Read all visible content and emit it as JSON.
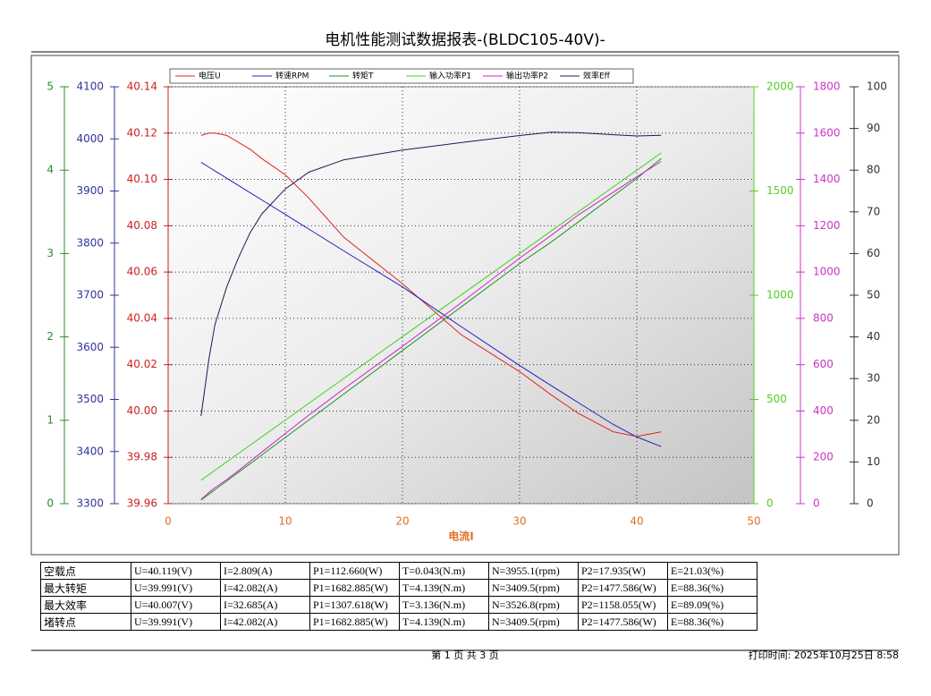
{
  "header": {
    "title": "电机性能测试数据报表-(BLDC105-40V)-"
  },
  "chart_data": {
    "type": "line",
    "xlabel": "电流I",
    "xlim": [
      0,
      50
    ],
    "xticks": [
      0,
      10,
      20,
      30,
      40,
      50
    ],
    "x": [
      2.809,
      3.5,
      4,
      5,
      6,
      7,
      8,
      10,
      12,
      15,
      20,
      25,
      30,
      32.685,
      35,
      38,
      40,
      42.082
    ],
    "y_axes": [
      {
        "color": "#2e8b2e",
        "lim": [
          0,
          5
        ],
        "ticks": [
          0,
          1,
          2,
          3,
          4,
          5
        ]
      },
      {
        "color": "#33339a",
        "lim": [
          3300,
          4100
        ],
        "ticks": [
          3300,
          3400,
          3500,
          3600,
          3700,
          3800,
          3900,
          4000,
          4100
        ]
      },
      {
        "color": "#cc2222",
        "lim": [
          39.96,
          40.14
        ],
        "grid": true,
        "ticks": [
          39.96,
          39.98,
          {
            "value": 40,
            "label": "40.00"
          },
          40.02,
          40.04,
          40.06,
          40.08,
          {
            "value": 40.1,
            "label": "40.10"
          },
          40.12,
          40.14
        ]
      },
      {
        "color": "#55cc22",
        "lim": [
          0,
          2000
        ],
        "ticks": [
          0,
          500,
          1000,
          1500,
          2000
        ]
      },
      {
        "color": "#cc33cc",
        "lim": [
          0,
          1800
        ],
        "ticks": [
          0,
          200,
          400,
          600,
          800,
          1000,
          1200,
          1400,
          1600,
          1800
        ]
      },
      {
        "color": "#333333",
        "lim": [
          0,
          100
        ],
        "ticks": [
          0,
          10,
          20,
          30,
          40,
          50,
          60,
          70,
          80,
          90,
          100
        ]
      }
    ],
    "series": [
      {
        "name": "电压U",
        "color": "#e02020",
        "axis": 2,
        "values": [
          40.119,
          40.12,
          40.12,
          40.119,
          40.116,
          40.113,
          40.109,
          40.102,
          40.092,
          40.075,
          40.055,
          40.033,
          40.017,
          40.007,
          39.999,
          39.991,
          39.989,
          39.991
        ]
      },
      {
        "name": "转速RPM",
        "color": "#2020c0",
        "axis": 1,
        "values": [
          3955.1,
          3945.5,
          3938.5,
          3924.5,
          3910.7,
          3896.8,
          3882.9,
          3855,
          3827,
          3785,
          3716,
          3640,
          3565,
          3526.8,
          3494,
          3452,
          3428,
          3409.5
        ]
      },
      {
        "name": "转矩T",
        "color": "#209020",
        "axis": 0,
        "values": [
          0.043,
          0.115,
          0.167,
          0.272,
          0.376,
          0.48,
          0.585,
          0.794,
          1.002,
          1.315,
          1.837,
          2.358,
          2.88,
          3.136,
          3.378,
          3.691,
          3.9,
          4.139
        ]
      },
      {
        "name": "输入功率P1",
        "color": "#40d020",
        "axis": 3,
        "values": [
          112.66,
          140.4,
          160.5,
          200.6,
          240.7,
          280.8,
          320.9,
          401,
          481.1,
          601.1,
          801.1,
          1000.8,
          1200.5,
          1307.618,
          1400,
          1519.7,
          1599.6,
          1682.885
        ]
      },
      {
        "name": "输出功率P2",
        "color": "#d020d0",
        "axis": 4,
        "values": [
          17.935,
          49,
          69,
          104,
          142,
          183,
          223,
          303,
          382,
          496,
          679,
          867,
          1060,
          1158.055,
          1246,
          1345,
          1411,
          1477.586
        ]
      },
      {
        "name": "效率Eff",
        "color": "#301050",
        "axis": 5,
        "values": [
          21.03,
          35,
          43,
          52,
          59,
          65,
          69.5,
          75.5,
          79.5,
          82.5,
          84.8,
          86.6,
          88.3,
          89.09,
          89,
          88.5,
          88.2,
          88.36
        ]
      }
    ]
  },
  "table": {
    "rows": [
      [
        "空载点",
        "U=40.119(V)",
        "I=2.809(A)",
        "P1=112.660(W)",
        "T=0.043(N.m)",
        "N=3955.1(rpm)",
        "P2=17.935(W)",
        "E=21.03(%)"
      ],
      [
        "最大转矩",
        "U=39.991(V)",
        "I=42.082(A)",
        "P1=1682.885(W)",
        "T=4.139(N.m)",
        "N=3409.5(rpm)",
        "P2=1477.586(W)",
        "E=88.36(%)"
      ],
      [
        "最大效率",
        "U=40.007(V)",
        "I=32.685(A)",
        "P1=1307.618(W)",
        "T=3.136(N.m)",
        "N=3526.8(rpm)",
        "P2=1158.055(W)",
        "E=89.09(%)"
      ],
      [
        "堵转点",
        "U=39.991(V)",
        "I=42.082(A)",
        "P1=1682.885(W)",
        "T=4.139(N.m)",
        "N=3409.5(rpm)",
        "P2=1477.586(W)",
        "E=88.36(%)"
      ]
    ]
  },
  "footer": {
    "page": "第 1 页  共 3 页",
    "print_time": "打印时间: 2025年10月25日 8:58"
  }
}
